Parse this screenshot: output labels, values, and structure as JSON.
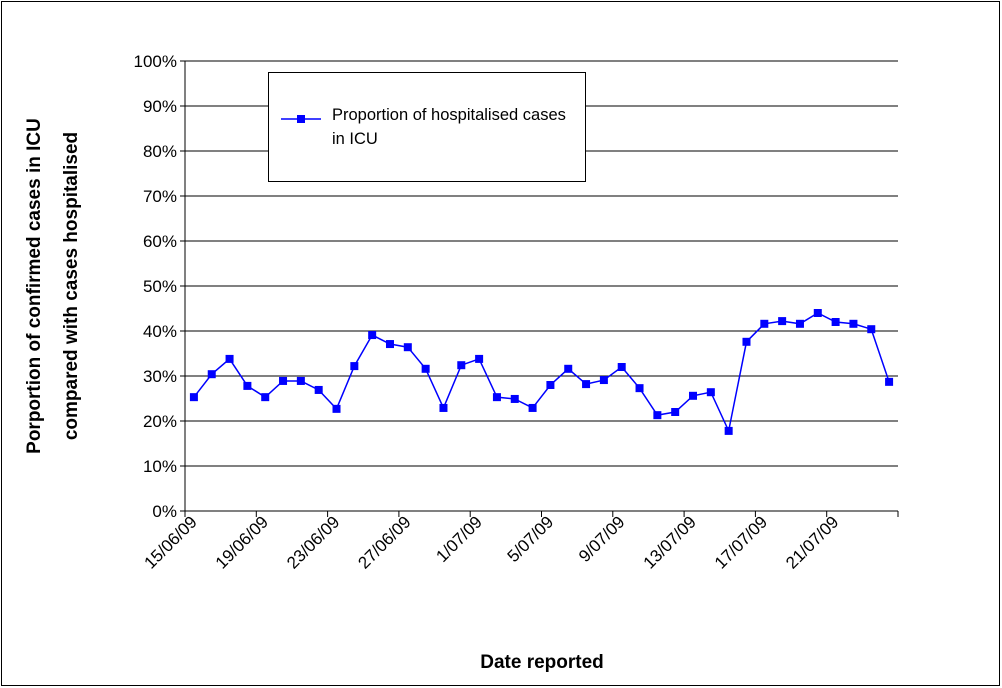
{
  "chart_data": {
    "type": "line",
    "x_label": "Date reported",
    "y_label": [
      "Porportion of confirmed cases in ICU",
      "compared with cases hospitalised"
    ],
    "categories": [
      "15/06/09",
      null,
      null,
      null,
      "19/06/09",
      null,
      null,
      null,
      "23/06/09",
      null,
      null,
      null,
      "27/06/09",
      null,
      null,
      null,
      "1/07/09",
      null,
      null,
      null,
      "5/07/09",
      null,
      null,
      null,
      "9/07/09",
      null,
      null,
      null,
      "13/07/09",
      null,
      null,
      null,
      "17/07/09",
      null,
      null,
      null,
      "21/07/09",
      null,
      null,
      null
    ],
    "series": [
      {
        "name": "Proportion of hospitalised cases in ICU",
        "color": "#0000ff",
        "values": [
          25.3,
          30.4,
          33.8,
          27.8,
          25.3,
          28.9,
          28.9,
          26.9,
          22.7,
          32.2,
          39.1,
          37.1,
          36.4,
          31.6,
          22.9,
          32.4,
          33.8,
          25.3,
          24.9,
          22.9,
          28.0,
          31.6,
          28.2,
          29.1,
          32.0,
          27.3,
          21.3,
          22.0,
          25.6,
          26.4,
          17.8,
          37.6,
          41.6,
          42.2,
          41.6,
          44.0,
          42.0,
          41.6,
          40.4,
          28.7
        ]
      }
    ],
    "ylim": [
      0,
      100
    ],
    "yticks": [
      {
        "value": 0,
        "label": "0%"
      },
      {
        "value": 10,
        "label": "10%"
      },
      {
        "value": 20,
        "label": "20%"
      },
      {
        "value": 30,
        "label": "30%"
      },
      {
        "value": 40,
        "label": "40%"
      },
      {
        "value": 50,
        "label": "50%"
      },
      {
        "value": 60,
        "label": "60%"
      },
      {
        "value": 70,
        "label": "70%"
      },
      {
        "value": 80,
        "label": "80%"
      },
      {
        "value": 90,
        "label": "90%"
      },
      {
        "value": 100,
        "label": "100%"
      }
    ],
    "grid": true
  }
}
